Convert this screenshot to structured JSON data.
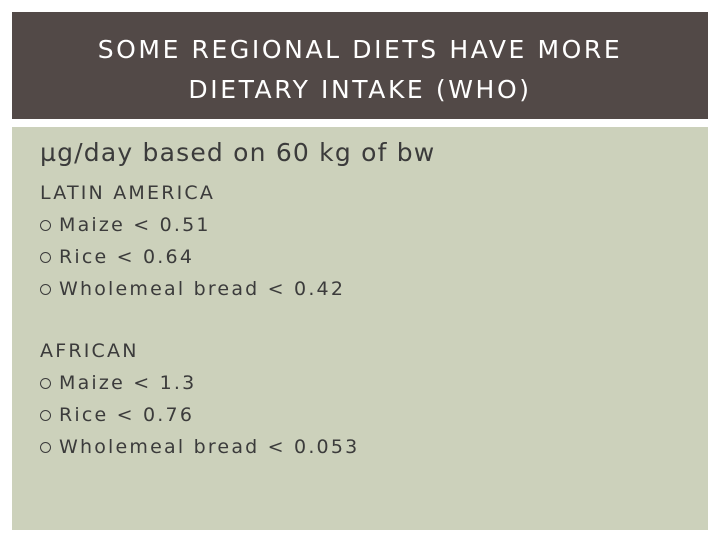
{
  "slide": {
    "title_line1": "SOME REGIONAL DIETS HAVE MORE",
    "title_line2": "DIETARY INTAKE (WHO)",
    "subtitle": "µg/day based on 60 kg of bw",
    "sections": [
      {
        "heading": "LATIN AMERICA",
        "items": [
          "Maize < 0.51",
          "Rice < 0.64",
          "Wholemeal bread < 0.42"
        ]
      },
      {
        "heading": "AFRICAN",
        "items": [
          "Maize < 1.3",
          "Rice < 0.76",
          "Wholemeal bread < 0.053"
        ]
      }
    ],
    "bullet_icon": "hollow-circle-bullet-icon",
    "colors": {
      "title_background": "#524947",
      "title_text": "#ffffff",
      "content_background": "#ccd1bb",
      "body_text": "#3b3b3b"
    }
  }
}
